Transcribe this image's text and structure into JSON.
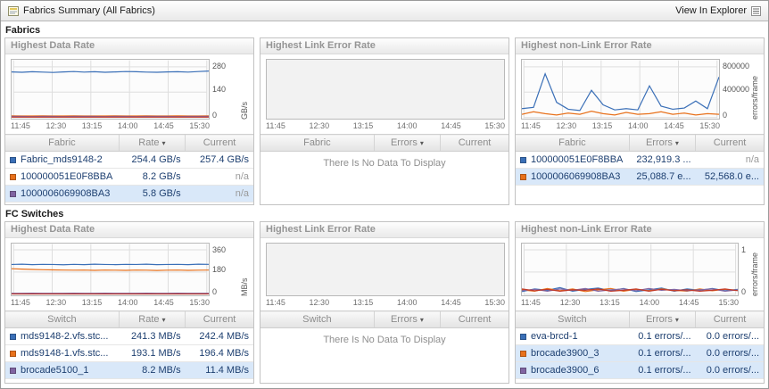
{
  "header": {
    "title": "Fabrics Summary (All Fabrics)",
    "action": "View In Explorer"
  },
  "icons": {
    "sort_arrow": "▾"
  },
  "time_ticks": [
    "11:45",
    "12:30",
    "13:15",
    "14:00",
    "14:45",
    "15:30"
  ],
  "no_data_message": "There Is No Data To Display",
  "fabrics": {
    "label": "Fabrics",
    "data_rate": {
      "title": "Highest Data Rate",
      "y_unit": "GB/s",
      "y_ticks": [
        "280",
        "140",
        "0"
      ],
      "columns": {
        "name": "Fabric",
        "value": "Rate",
        "current": "Current"
      },
      "rows": [
        {
          "color": "#3a6fb7",
          "name": "Fabric_mds9148-2",
          "value": "254.4 GB/s",
          "current": "257.4 GB/s"
        },
        {
          "color": "#e8711c",
          "name": "100000051E0F8BBA",
          "value": "8.2 GB/s",
          "current": "n/a"
        },
        {
          "color": "#8064a2",
          "name": "1000006069908BA3",
          "value": "5.8 GB/s",
          "current": "n/a"
        }
      ],
      "chart": {
        "y_max": 280,
        "series": [
          {
            "color": "#3a6fb7",
            "values": [
              252,
              250,
              253,
              251,
              249,
              252,
              254,
              251,
              253,
              250,
              252,
              254,
              253,
              251,
              250,
              252,
              253,
              251,
              254,
              257
            ]
          },
          {
            "color": "#e8711c",
            "values": [
              9,
              8,
              8,
              9,
              8,
              8,
              9,
              8,
              8,
              8,
              9,
              8,
              8,
              9,
              8,
              8,
              9,
              8,
              8,
              9
            ]
          },
          {
            "color": "#8064a2",
            "values": [
              6,
              6,
              5,
              6,
              6,
              5,
              6,
              6,
              6,
              5,
              6,
              6,
              5,
              6,
              6,
              6,
              5,
              6,
              6,
              6
            ]
          },
          {
            "color": "#c0392b",
            "values": [
              2,
              2,
              2,
              2,
              2,
              2,
              2,
              2,
              2,
              2,
              2,
              2,
              2,
              2,
              2,
              2,
              2,
              2,
              2,
              2
            ]
          }
        ]
      }
    },
    "link_error": {
      "title": "Highest Link Error Rate",
      "columns": {
        "name": "Fabric",
        "value": "Errors",
        "current": "Current"
      },
      "chart": {
        "grid": false,
        "y_max": 1,
        "series": []
      }
    },
    "non_link_error": {
      "title": "Highest non-Link Error Rate",
      "y_unit": "errors/frame",
      "y_ticks": [
        "800000",
        "400000",
        "0"
      ],
      "columns": {
        "name": "Fabric",
        "value": "Errors",
        "current": "Current"
      },
      "rows": [
        {
          "color": "#3a6fb7",
          "name": "100000051E0F8BBA",
          "value": "232,919.3 ...",
          "current": "n/a"
        },
        {
          "color": "#e8711c",
          "name": "1000006069908BA3",
          "value": "25,088.7 e...",
          "current": "52,568.0 e..."
        }
      ],
      "chart": {
        "y_max": 800000,
        "series": [
          {
            "color": "#3a6fb7",
            "values": [
              140000,
              160000,
              690000,
              240000,
              130000,
              110000,
              430000,
              200000,
              120000,
              140000,
              120000,
              500000,
              180000,
              130000,
              150000,
              260000,
              140000,
              640000
            ]
          },
          {
            "color": "#e8711c",
            "values": [
              50000,
              90000,
              60000,
              40000,
              70000,
              50000,
              100000,
              60000,
              40000,
              80000,
              50000,
              60000,
              90000,
              50000,
              70000,
              40000,
              60000,
              50000
            ]
          }
        ]
      }
    }
  },
  "switches": {
    "label": "FC Switches",
    "data_rate": {
      "title": "Highest Data Rate",
      "y_unit": "MB/s",
      "y_ticks": [
        "360",
        "180",
        "0"
      ],
      "columns": {
        "name": "Switch",
        "value": "Rate",
        "current": "Current"
      },
      "rows": [
        {
          "color": "#3a6fb7",
          "name": "mds9148-2.vfs.stc...",
          "value": "241.3 MB/s",
          "current": "242.4 MB/s"
        },
        {
          "color": "#e8711c",
          "name": "mds9148-1.vfs.stc...",
          "value": "193.1 MB/s",
          "current": "196.4 MB/s"
        },
        {
          "color": "#8064a2",
          "name": "brocade5100_1",
          "value": "8.2 MB/s",
          "current": "11.4 MB/s"
        }
      ],
      "chart": {
        "y_max": 360,
        "series": [
          {
            "color": "#3a6fb7",
            "values": [
              241,
              243,
              240,
              242,
              241,
              239,
              242,
              240,
              243,
              241,
              240,
              242,
              241,
              243,
              240,
              241,
              242,
              240,
              243,
              242
            ]
          },
          {
            "color": "#e8711c",
            "values": [
              207,
              204,
              201,
              199,
              197,
              196,
              195,
              196,
              194,
              196,
              195,
              194,
              196,
              195,
              193,
              195,
              196,
              194,
              195,
              196
            ]
          },
          {
            "color": "#8064a2",
            "values": [
              8,
              8,
              9,
              8,
              8,
              8,
              9,
              8,
              8,
              9,
              8,
              8,
              8,
              9,
              8,
              8,
              9,
              8,
              8,
              8
            ]
          },
          {
            "color": "#c0392b",
            "values": [
              3,
              3,
              3,
              3,
              3,
              3,
              3,
              3,
              3,
              3,
              3,
              3,
              3,
              3,
              3,
              3,
              3,
              3,
              3,
              3
            ]
          }
        ]
      }
    },
    "link_error": {
      "title": "Highest Link Error Rate",
      "columns": {
        "name": "Switch",
        "value": "Errors",
        "current": "Current"
      },
      "chart": {
        "grid": false,
        "y_max": 1,
        "series": []
      }
    },
    "non_link_error": {
      "title": "Highest non-Link Error Rate",
      "y_unit": "errors/frame",
      "y_ticks": [
        "1",
        "0"
      ],
      "columns": {
        "name": "Switch",
        "value": "Errors",
        "current": "Current"
      },
      "rows": [
        {
          "color": "#3a6fb7",
          "name": "eva-brcd-1",
          "value": "0.1 errors/...",
          "current": "0.0 errors/..."
        },
        {
          "color": "#e8711c",
          "name": "brocade3900_3",
          "value": "0.1 errors/...",
          "current": "0.0 errors/..."
        },
        {
          "color": "#8064a2",
          "name": "brocade3900_6",
          "value": "0.1 errors/...",
          "current": "0.0 errors/..."
        }
      ],
      "chart": {
        "y_max": 1,
        "series": [
          {
            "color": "#3a6fb7",
            "values": [
              0.06,
              0.12,
              0.09,
              0.15,
              0.07,
              0.11,
              0.14,
              0.08,
              0.13,
              0.06,
              0.1,
              0.14,
              0.07,
              0.12,
              0.09,
              0.13,
              0.08,
              0.11
            ]
          },
          {
            "color": "#e8711c",
            "values": [
              0.1,
              0.07,
              0.13,
              0.08,
              0.12,
              0.06,
              0.1,
              0.13,
              0.07,
              0.11,
              0.08,
              0.12,
              0.09,
              0.07,
              0.12,
              0.08,
              0.11,
              0.09
            ]
          },
          {
            "color": "#8064a2",
            "values": [
              0.08,
              0.11,
              0.07,
              0.12,
              0.09,
              0.13,
              0.07,
              0.1,
              0.12,
              0.08,
              0.13,
              0.09,
              0.11,
              0.08,
              0.1,
              0.12,
              0.07,
              0.1
            ]
          },
          {
            "color": "#c0392b",
            "values": [
              0.12,
              0.08,
              0.11,
              0.07,
              0.1,
              0.09,
              0.12,
              0.07,
              0.09,
              0.12,
              0.07,
              0.11,
              0.08,
              0.1,
              0.07,
              0.09,
              0.12,
              0.08
            ]
          }
        ]
      }
    }
  }
}
